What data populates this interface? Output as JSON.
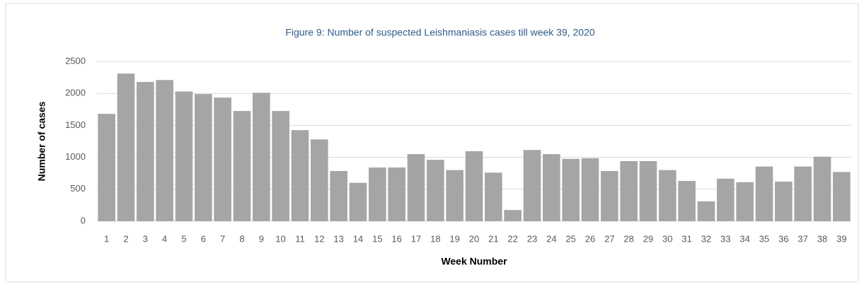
{
  "chart_data": {
    "type": "bar",
    "title": "Figure 9: Number of suspected Leishmaniasis cases till week 39, 2020",
    "x_label": "Week Number",
    "y_label": "Number of cases",
    "categories": [
      "1",
      "2",
      "3",
      "4",
      "5",
      "6",
      "7",
      "8",
      "9",
      "10",
      "11",
      "12",
      "13",
      "14",
      "15",
      "16",
      "17",
      "18",
      "19",
      "20",
      "21",
      "22",
      "23",
      "24",
      "25",
      "26",
      "27",
      "28",
      "29",
      "30",
      "31",
      "32",
      "33",
      "34",
      "35",
      "36",
      "37",
      "38",
      "39"
    ],
    "values": [
      1680,
      2310,
      2180,
      2210,
      2030,
      1990,
      1935,
      1725,
      2010,
      1725,
      1425,
      1280,
      785,
      600,
      840,
      840,
      1050,
      960,
      800,
      1095,
      760,
      175,
      1115,
      1050,
      975,
      985,
      785,
      940,
      940,
      800,
      630,
      310,
      665,
      610,
      855,
      620,
      855,
      1010,
      770
    ],
    "color": "#a5a5a5",
    "ylim": [
      0,
      2500
    ],
    "yticks": [
      0,
      500,
      1000,
      1500,
      2000,
      2500
    ],
    "grid": true
  }
}
